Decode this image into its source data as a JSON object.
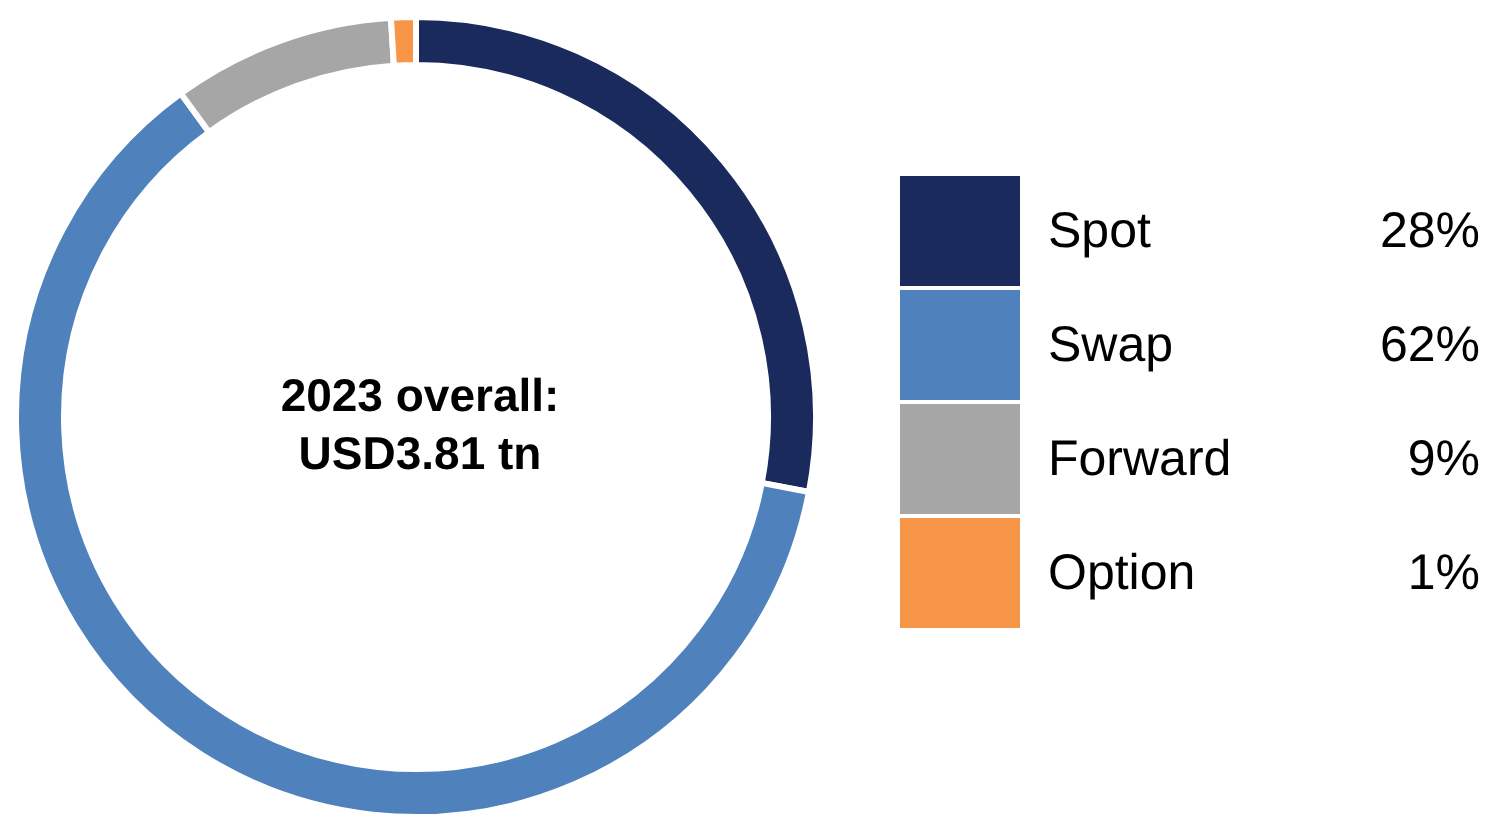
{
  "chart_data": {
    "type": "donut",
    "categories": [
      "Spot",
      "Swap",
      "Forward",
      "Option"
    ],
    "values": [
      28,
      62,
      9,
      1
    ],
    "value_labels": [
      "28%",
      "62%",
      "9%",
      "1%"
    ],
    "colors": [
      "#1b2a5c",
      "#4f81bd",
      "#a6a6a6",
      "#f79646"
    ],
    "annotations": [
      "2023 overall:",
      "USD3.81 tn"
    ],
    "legend": "right"
  }
}
